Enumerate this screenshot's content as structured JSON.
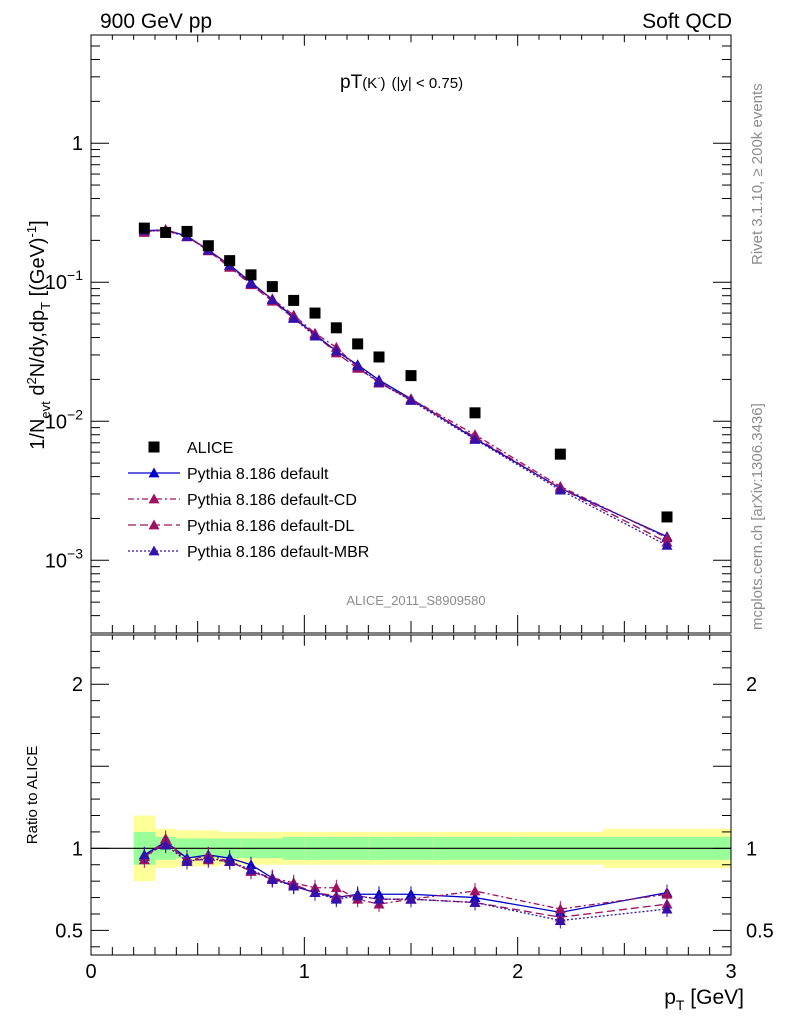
{
  "header": {
    "left": "900 GeV pp",
    "right": "Soft QCD"
  },
  "side_labels": {
    "rivet": "Rivet 3.1.10, ≥ 200k events",
    "mcplots": "mcplots.cern.ch [arXiv:1306.3436]"
  },
  "plot_title": {
    "main": "pT",
    "particle": "(K",
    "charge": "-",
    "close": ")",
    "cut": "(|y| < 0.75)"
  },
  "analysis_label": "ALICE_2011_S8909580",
  "ylabel_main": {
    "p1": "1/N",
    "p1sub": "evt",
    "p2": " d",
    "p2sup": "2",
    "p3": "N/dy,dp",
    "p3sub": "T",
    "p4": " [(GeV)",
    "p4sup": "-1",
    "p5": "]"
  },
  "ylabel_ratio": "Ratio to ALICE",
  "xlabel": {
    "p": "p",
    "sub": "T",
    "rest": " [GeV]"
  },
  "chart_data": {
    "type": "scatter",
    "xlim": [
      0,
      3
    ],
    "ylim": [
      0.0003,
      6
    ],
    "yscale": "log",
    "ratio_ylim": [
      0.35,
      2.3
    ],
    "x_ticks": [
      "0",
      "1",
      "2",
      "3"
    ],
    "y_ticks_main": [
      {
        "value": 1,
        "base": "1",
        "exp": ""
      },
      {
        "value": 0.1,
        "base": "10",
        "exp": "−1"
      },
      {
        "value": 0.01,
        "base": "10",
        "exp": "−2"
      },
      {
        "value": 0.001,
        "base": "10",
        "exp": "−3"
      }
    ],
    "y_ticks_ratio": [
      {
        "value": 0.5,
        "label": "0.5"
      },
      {
        "value": 1,
        "label": "1"
      },
      {
        "value": 2,
        "label": "2"
      }
    ],
    "legend_position": "bottom-left",
    "x": [
      0.25,
      0.35,
      0.45,
      0.55,
      0.65,
      0.75,
      0.85,
      0.95,
      1.05,
      1.15,
      1.25,
      1.35,
      1.5,
      1.8,
      2.2,
      2.7
    ],
    "bin_edges": [
      0.2,
      0.3,
      0.4,
      0.5,
      0.6,
      0.7,
      0.8,
      0.9,
      1.0,
      1.1,
      1.2,
      1.3,
      1.4,
      1.6,
      2.0,
      2.4,
      3.0
    ],
    "data": {
      "name": "ALICE",
      "color": "#000000",
      "values": [
        0.245,
        0.228,
        0.232,
        0.183,
        0.143,
        0.113,
        0.093,
        0.074,
        0.06,
        0.047,
        0.036,
        0.029,
        0.0213,
        0.0115,
        0.0058,
        0.00205
      ]
    },
    "band_green": [
      [
        0.9,
        1.1
      ],
      [
        0.93,
        1.07
      ],
      [
        0.94,
        1.06
      ],
      [
        0.94,
        1.06
      ],
      [
        0.94,
        1.06
      ],
      [
        0.94,
        1.06
      ],
      [
        0.94,
        1.06
      ],
      [
        0.93,
        1.07
      ],
      [
        0.93,
        1.07
      ],
      [
        0.93,
        1.07
      ],
      [
        0.93,
        1.07
      ],
      [
        0.93,
        1.07
      ],
      [
        0.93,
        1.07
      ],
      [
        0.93,
        1.07
      ],
      [
        0.93,
        1.07
      ],
      [
        0.93,
        1.07
      ]
    ],
    "band_yellow": [
      [
        0.8,
        1.2
      ],
      [
        0.88,
        1.12
      ],
      [
        0.89,
        1.11
      ],
      [
        0.89,
        1.11
      ],
      [
        0.9,
        1.1
      ],
      [
        0.9,
        1.1
      ],
      [
        0.9,
        1.1
      ],
      [
        0.9,
        1.1
      ],
      [
        0.9,
        1.1
      ],
      [
        0.9,
        1.1
      ],
      [
        0.9,
        1.1
      ],
      [
        0.9,
        1.1
      ],
      [
        0.9,
        1.1
      ],
      [
        0.9,
        1.1
      ],
      [
        0.9,
        1.1
      ],
      [
        0.88,
        1.12
      ]
    ],
    "band_bins": [
      [
        0.2,
        0.3
      ],
      [
        0.3,
        0.4
      ],
      [
        0.4,
        0.5
      ],
      [
        0.5,
        0.6
      ],
      [
        0.6,
        0.7
      ],
      [
        0.7,
        0.8
      ],
      [
        0.8,
        0.9
      ],
      [
        0.9,
        1.0
      ],
      [
        1.0,
        1.1
      ],
      [
        1.1,
        1.2
      ],
      [
        1.2,
        1.3
      ],
      [
        1.3,
        1.4
      ],
      [
        1.4,
        1.6
      ],
      [
        1.6,
        2.0
      ],
      [
        2.0,
        2.4
      ],
      [
        2.4,
        3.0
      ]
    ],
    "series": [
      {
        "name": "Pythia 8.186 default",
        "color": "#0000cc",
        "dash": "",
        "values": [
          0.235,
          0.238,
          0.215,
          0.17,
          0.133,
          0.1,
          0.075,
          0.056,
          0.042,
          0.032,
          0.0255,
          0.0198,
          0.0145,
          0.0075,
          0.0033,
          0.00148
        ],
        "ratio": [
          0.96,
          1.04,
          0.94,
          0.96,
          0.94,
          0.9,
          0.82,
          0.77,
          0.73,
          0.7,
          0.72,
          0.72,
          0.72,
          0.7,
          0.61,
          0.73
        ]
      },
      {
        "name": "Pythia 8.186 default-CD",
        "color": "#a01060",
        "dash": "6,3,2,3",
        "values": [
          0.228,
          0.24,
          0.212,
          0.172,
          0.131,
          0.097,
          0.076,
          0.058,
          0.043,
          0.034,
          0.0245,
          0.0188,
          0.0145,
          0.008,
          0.0034,
          0.00145
        ],
        "ratio": [
          0.93,
          1.06,
          0.92,
          0.96,
          0.92,
          0.86,
          0.82,
          0.79,
          0.76,
          0.76,
          0.69,
          0.66,
          0.69,
          0.74,
          0.63,
          0.72
        ]
      },
      {
        "name": "Pythia 8.186 default-DL",
        "color": "#a01060",
        "dash": "8,4",
        "values": [
          0.232,
          0.236,
          0.214,
          0.168,
          0.128,
          0.096,
          0.073,
          0.055,
          0.042,
          0.031,
          0.024,
          0.0192,
          0.0142,
          0.0077,
          0.0033,
          0.00135
        ],
        "ratio": [
          0.95,
          1.03,
          0.93,
          0.93,
          0.92,
          0.86,
          0.81,
          0.78,
          0.73,
          0.71,
          0.71,
          0.69,
          0.69,
          0.67,
          0.58,
          0.66
        ]
      },
      {
        "name": "Pythia 8.186 default-MBR",
        "color": "#3311aa",
        "dash": "2,2",
        "values": [
          0.236,
          0.234,
          0.213,
          0.17,
          0.132,
          0.098,
          0.075,
          0.055,
          0.041,
          0.032,
          0.025,
          0.019,
          0.0141,
          0.0074,
          0.0032,
          0.00128
        ],
        "ratio": [
          0.96,
          1.02,
          0.92,
          0.94,
          0.92,
          0.87,
          0.81,
          0.77,
          0.73,
          0.69,
          0.71,
          0.69,
          0.69,
          0.67,
          0.56,
          0.63
        ]
      }
    ]
  }
}
